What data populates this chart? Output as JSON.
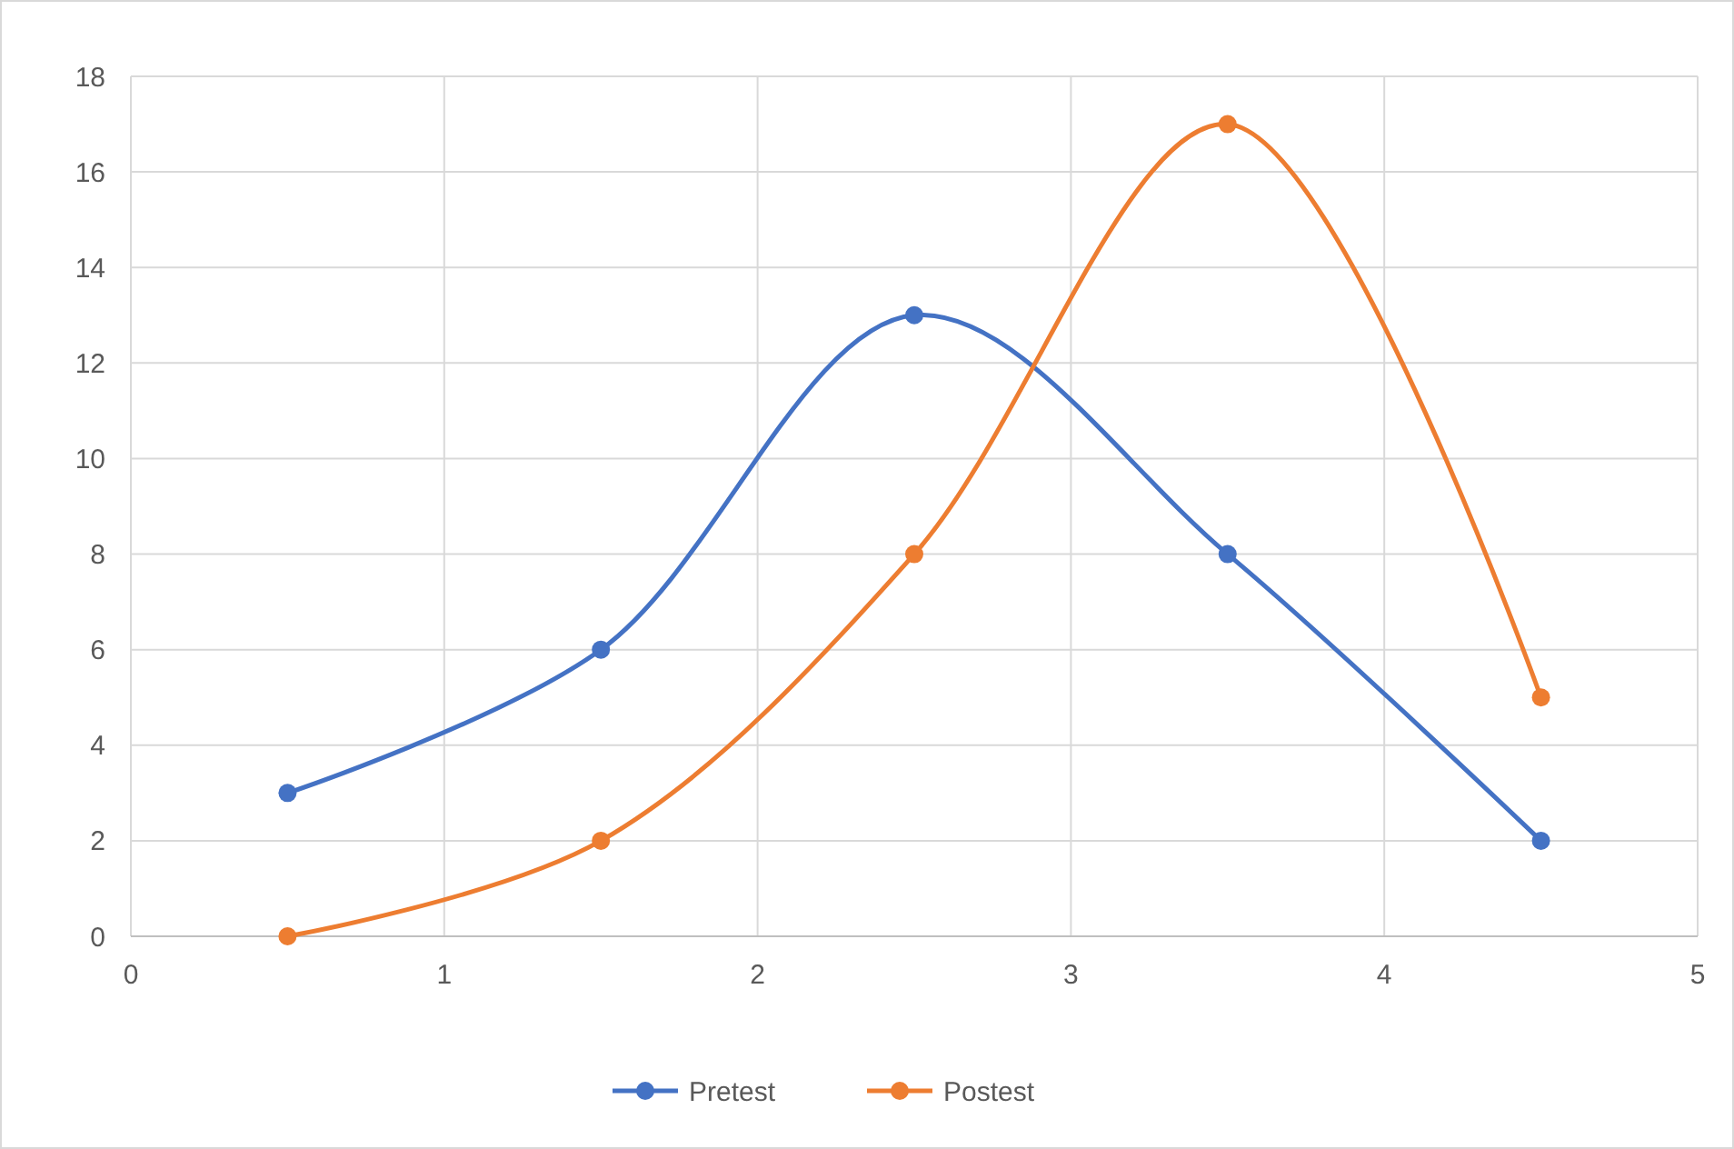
{
  "chart_data": {
    "type": "line",
    "x": [
      0.5,
      1.5,
      2.5,
      3.5,
      4.5
    ],
    "series": [
      {
        "name": "Pretest",
        "color": "#4472c4",
        "values": [
          3,
          6,
          13,
          8,
          2
        ]
      },
      {
        "name": "Postest",
        "color": "#ed7d31",
        "values": [
          0,
          2,
          8,
          17,
          5
        ]
      }
    ],
    "xlim": [
      0,
      5
    ],
    "xticks": [
      0,
      1,
      2,
      3,
      4,
      5
    ],
    "ylim": [
      0,
      18
    ],
    "yticks": [
      0,
      2,
      4,
      6,
      8,
      10,
      12,
      14,
      16,
      18
    ],
    "grid": true,
    "legend": "bottom",
    "marker": "circle",
    "line_style": "solid"
  }
}
